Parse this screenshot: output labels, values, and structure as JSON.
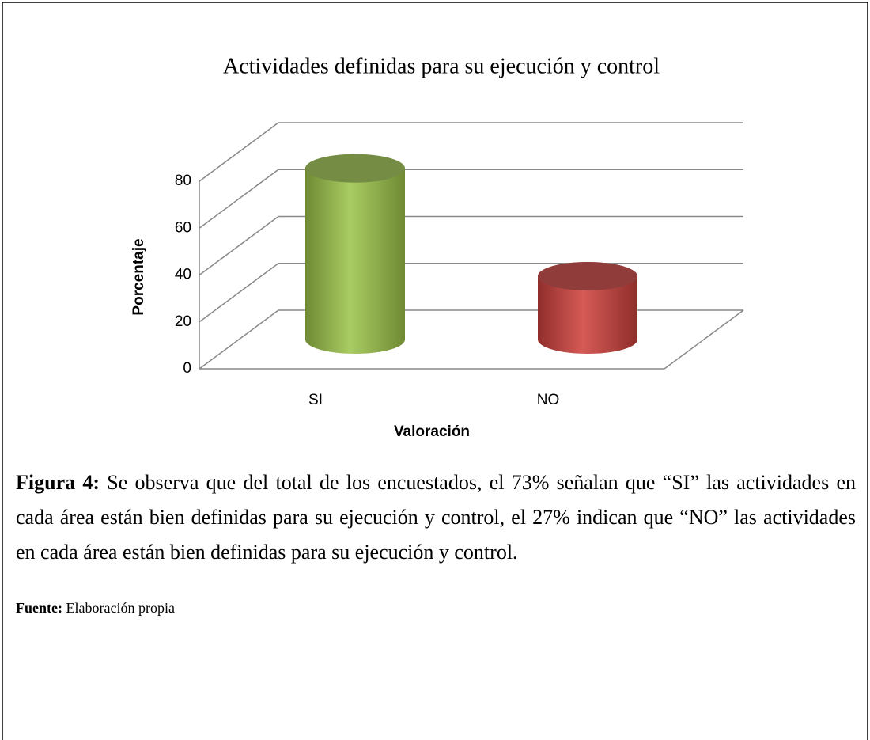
{
  "chart_data": {
    "type": "bar3d",
    "title": "Actividades definidas para su ejecución y control",
    "categories": [
      "SI",
      "NO"
    ],
    "values": [
      73,
      27
    ],
    "colors": [
      "#9bbb59",
      "#c0504d"
    ],
    "ylim": [
      0,
      80
    ],
    "yticks": [
      0,
      20,
      40,
      60,
      80
    ],
    "grid": true,
    "ylabel": "Porcentaje",
    "xlabel": "Valoración"
  },
  "caption": {
    "label": "Figura 4:",
    "text": " Se observa que del total de los encuestados, el 73% señalan que “SI” las actividades en cada área están bien definidas para su ejecución y control, el 27% indican que “NO” las actividades en cada área están bien definidas para su ejecución y control."
  },
  "source": {
    "label": "Fuente:",
    "text": " Elaboración propia"
  }
}
